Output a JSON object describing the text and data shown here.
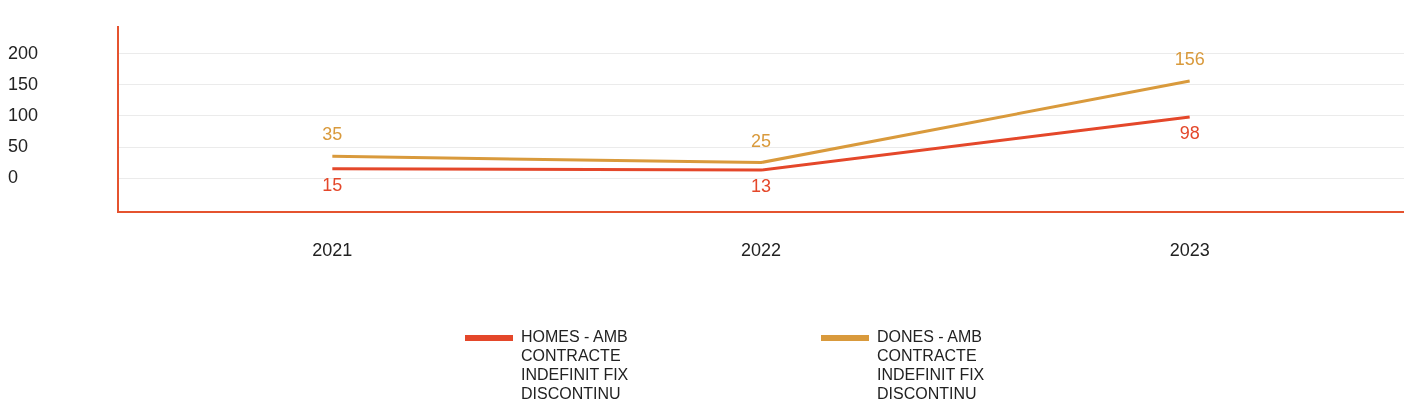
{
  "chart_data": {
    "type": "line",
    "categories": [
      "2021",
      "2022",
      "2023"
    ],
    "series": [
      {
        "name": "HOMES - AMB CONTRACTE INDEFINIT FIX DISCONTINU",
        "color": "#e4472a",
        "values": [
          15,
          13,
          98
        ]
      },
      {
        "name": "DONES - AMB CONTRACTE INDEFINIT FIX DISCONTINU",
        "color": "#d99a3c",
        "values": [
          35,
          25,
          156
        ]
      }
    ],
    "ylim": [
      -55,
      243
    ],
    "yticks": [
      0,
      50,
      100,
      150,
      200
    ],
    "grid": "y",
    "legend": "bottom",
    "marker": "none",
    "line_style": "solid",
    "data_labels": true
  }
}
